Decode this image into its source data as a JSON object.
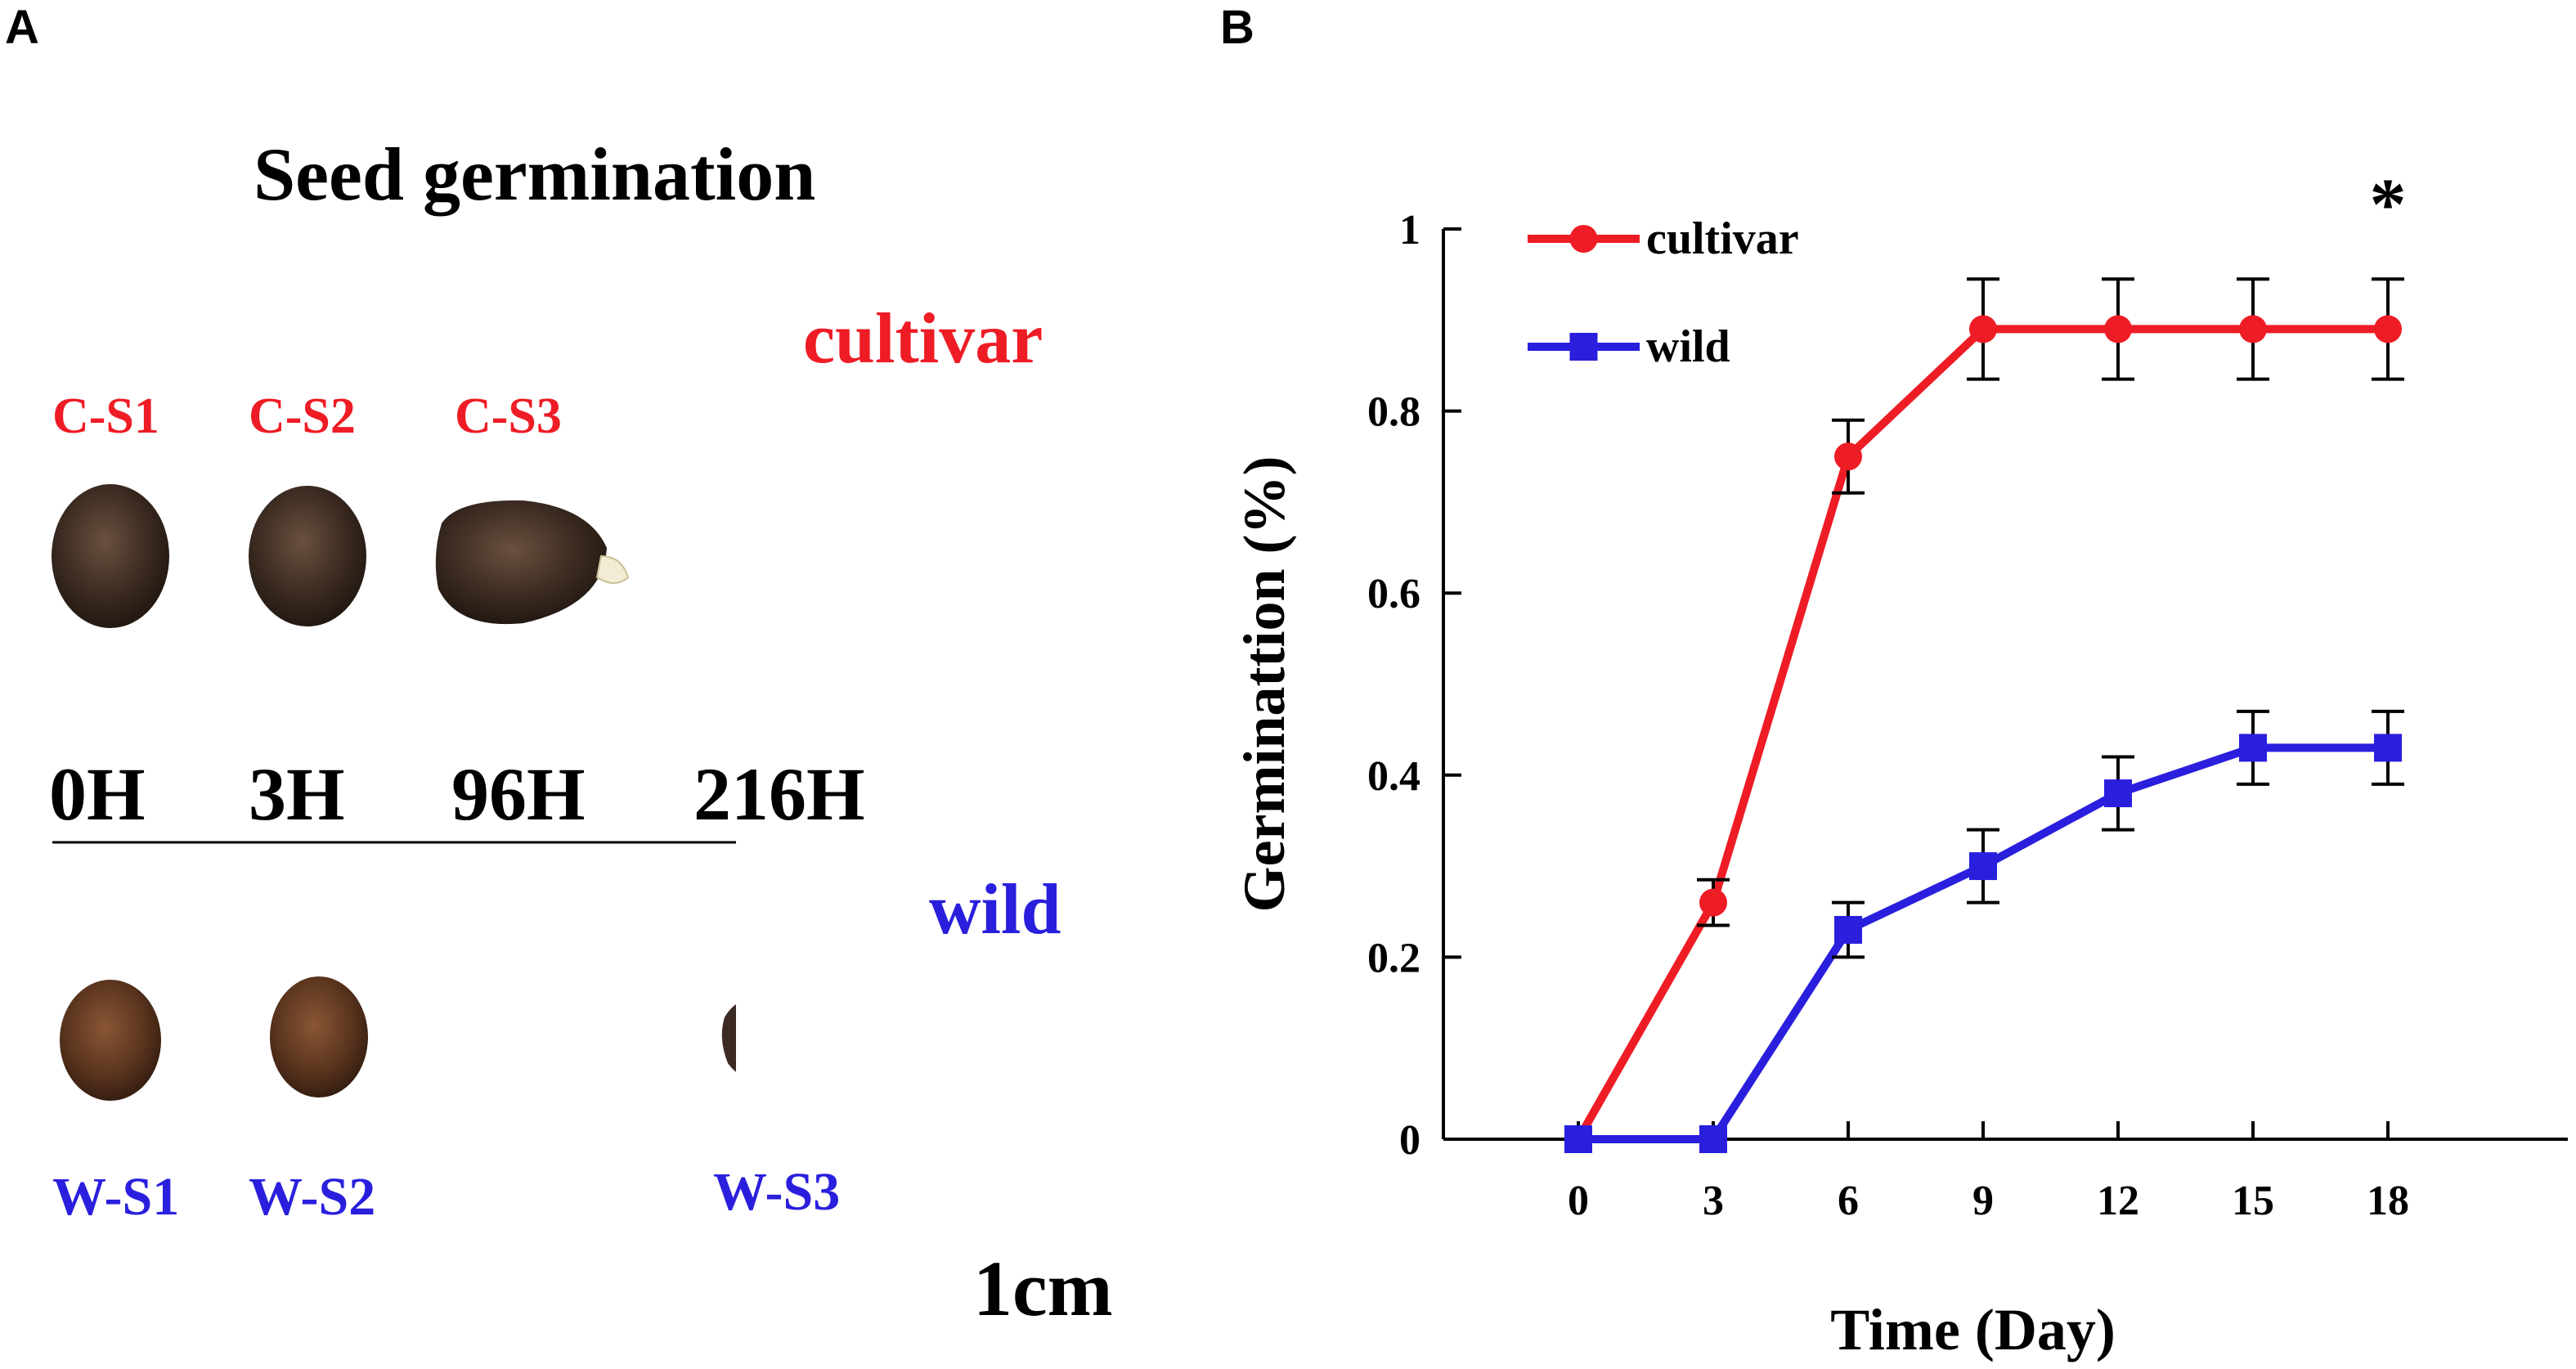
{
  "panels": {
    "a": "A",
    "b": "B"
  },
  "panel_a": {
    "title": "Seed germination",
    "cultivar_label": "cultivar",
    "wild_label": "wild",
    "cultivar_samples": [
      "C-S1",
      "C-S2",
      "C-S3"
    ],
    "wild_samples": [
      "W-S1",
      "W-S2",
      "W-S3"
    ],
    "timepoints": [
      "0H",
      "3H",
      "96H",
      "216H"
    ],
    "scale_bar": "1cm"
  },
  "colors": {
    "cultivar": "#ee1c25",
    "wild": "#2a1fdd",
    "axis": "#000000"
  },
  "chart_data": {
    "type": "line",
    "title": "",
    "xlabel": "Time (Day)",
    "ylabel": "Germinattion (%)",
    "x": [
      0,
      3,
      6,
      9,
      12,
      15,
      18
    ],
    "x_ticks": [
      "0",
      "3",
      "6",
      "9",
      "12",
      "15",
      "18"
    ],
    "y_ticks": [
      "0",
      "0.2",
      "0.4",
      "0.6",
      "0.8",
      "1"
    ],
    "xlim": [
      -3,
      22
    ],
    "ylim": [
      0,
      1
    ],
    "legend_position": "top-left",
    "annotation": "*",
    "series": [
      {
        "name": "cultivar",
        "marker": "circle",
        "values": [
          0,
          0.26,
          0.75,
          0.89,
          0.89,
          0.89,
          0.89
        ],
        "errors": [
          0,
          0.025,
          0.04,
          0.055,
          0.055,
          0.055,
          0.055
        ]
      },
      {
        "name": "wild",
        "marker": "square",
        "values": [
          0,
          0,
          0.23,
          0.3,
          0.38,
          0.43,
          0.43
        ],
        "errors": [
          0,
          0,
          0.03,
          0.04,
          0.04,
          0.04,
          0.04
        ]
      }
    ]
  }
}
